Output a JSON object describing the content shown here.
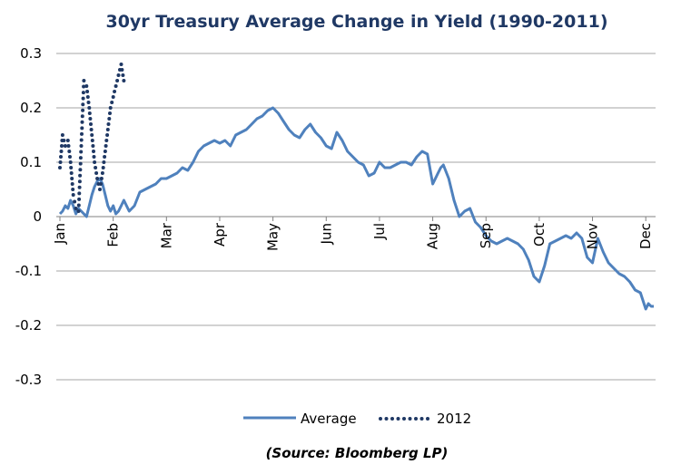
{
  "chart_data": {
    "type": "line",
    "title": "30yr Treasury Average Change in Yield (1990-2011)",
    "source": "(Source: Bloomberg LP)",
    "xlabel": "",
    "ylabel": "",
    "ylim": [
      -0.3,
      0.3
    ],
    "y_ticks": [
      "0.3",
      "0.2",
      "0.1",
      "0",
      "-0.1",
      "-0.2",
      "-0.3"
    ],
    "y_tick_values": [
      0.3,
      0.2,
      0.1,
      0,
      -0.1,
      -0.2,
      -0.3
    ],
    "x_range_months": [
      0,
      11.15
    ],
    "months": [
      "Jan",
      "Feb",
      "Mar",
      "Apr",
      "May",
      "Jun",
      "Jul",
      "Aug",
      "Sep",
      "Oct",
      "Nov",
      "Dec"
    ],
    "grid": true,
    "legend_position": "bottom",
    "series": [
      {
        "name": "Average",
        "style": "solid",
        "color": "#4f81bd",
        "x": [
          0,
          0.05,
          0.1,
          0.15,
          0.2,
          0.25,
          0.3,
          0.35,
          0.4,
          0.45,
          0.5,
          0.55,
          0.6,
          0.65,
          0.7,
          0.75,
          0.8,
          0.85,
          0.9,
          0.95,
          1.0,
          1.05,
          1.1,
          1.15,
          1.2,
          1.3,
          1.4,
          1.5,
          1.6,
          1.7,
          1.8,
          1.9,
          2.0,
          2.1,
          2.2,
          2.3,
          2.4,
          2.5,
          2.6,
          2.7,
          2.8,
          2.9,
          3.0,
          3.1,
          3.2,
          3.3,
          3.4,
          3.5,
          3.6,
          3.7,
          3.8,
          3.9,
          4.0,
          4.1,
          4.2,
          4.3,
          4.4,
          4.5,
          4.6,
          4.7,
          4.8,
          4.9,
          5.0,
          5.1,
          5.2,
          5.3,
          5.4,
          5.5,
          5.6,
          5.7,
          5.8,
          5.9,
          6.0,
          6.1,
          6.2,
          6.3,
          6.4,
          6.5,
          6.6,
          6.7,
          6.8,
          6.9,
          7.0,
          7.1,
          7.15,
          7.2,
          7.3,
          7.4,
          7.5,
          7.6,
          7.7,
          7.8,
          7.9,
          8.0,
          8.1,
          8.2,
          8.3,
          8.4,
          8.5,
          8.6,
          8.7,
          8.8,
          8.9,
          9.0,
          9.1,
          9.2,
          9.3,
          9.4,
          9.5,
          9.6,
          9.7,
          9.8,
          9.9,
          10.0,
          10.1,
          10.2,
          10.3,
          10.4,
          10.5,
          10.6,
          10.7,
          10.8,
          10.9,
          11.0,
          11.05,
          11.1,
          11.15
        ],
        "values": [
          0.005,
          0.01,
          0.02,
          0.015,
          0.03,
          0.02,
          0.005,
          0.015,
          0.01,
          0.005,
          0.0,
          0.02,
          0.04,
          0.055,
          0.065,
          0.07,
          0.06,
          0.04,
          0.02,
          0.01,
          0.02,
          0.005,
          0.01,
          0.02,
          0.03,
          0.01,
          0.02,
          0.045,
          0.05,
          0.055,
          0.06,
          0.07,
          0.07,
          0.075,
          0.08,
          0.09,
          0.085,
          0.1,
          0.12,
          0.13,
          0.135,
          0.14,
          0.135,
          0.14,
          0.13,
          0.15,
          0.155,
          0.16,
          0.17,
          0.18,
          0.185,
          0.195,
          0.2,
          0.19,
          0.175,
          0.16,
          0.15,
          0.145,
          0.16,
          0.17,
          0.155,
          0.145,
          0.13,
          0.125,
          0.155,
          0.14,
          0.12,
          0.11,
          0.1,
          0.095,
          0.075,
          0.08,
          0.1,
          0.09,
          0.09,
          0.095,
          0.1,
          0.1,
          0.095,
          0.11,
          0.12,
          0.115,
          0.06,
          0.08,
          0.09,
          0.095,
          0.07,
          0.03,
          0.0,
          0.01,
          0.015,
          -0.01,
          -0.02,
          -0.035,
          -0.045,
          -0.05,
          -0.045,
          -0.04,
          -0.045,
          -0.05,
          -0.06,
          -0.08,
          -0.11,
          -0.12,
          -0.09,
          -0.05,
          -0.045,
          -0.04,
          -0.035,
          -0.04,
          -0.03,
          -0.04,
          -0.075,
          -0.085,
          -0.04,
          -0.065,
          -0.085,
          -0.095,
          -0.105,
          -0.11,
          -0.12,
          -0.135,
          -0.14,
          -0.17,
          -0.16,
          -0.165,
          -0.165
        ]
      },
      {
        "name": "2012",
        "style": "dotted",
        "color": "#1f3864",
        "x": [
          0,
          0.05,
          0.1,
          0.15,
          0.2,
          0.25,
          0.3,
          0.35,
          0.4,
          0.45,
          0.5,
          0.55,
          0.6,
          0.65,
          0.7,
          0.75,
          0.8,
          0.85,
          0.9,
          0.95,
          1.0,
          1.05,
          1.1,
          1.15,
          1.2
        ],
        "values": [
          0.09,
          0.15,
          0.13,
          0.14,
          0.1,
          0.04,
          0.015,
          0.01,
          0.13,
          0.25,
          0.24,
          0.2,
          0.15,
          0.1,
          0.07,
          0.05,
          0.08,
          0.12,
          0.16,
          0.2,
          0.22,
          0.24,
          0.26,
          0.28,
          0.25
        ]
      }
    ]
  }
}
